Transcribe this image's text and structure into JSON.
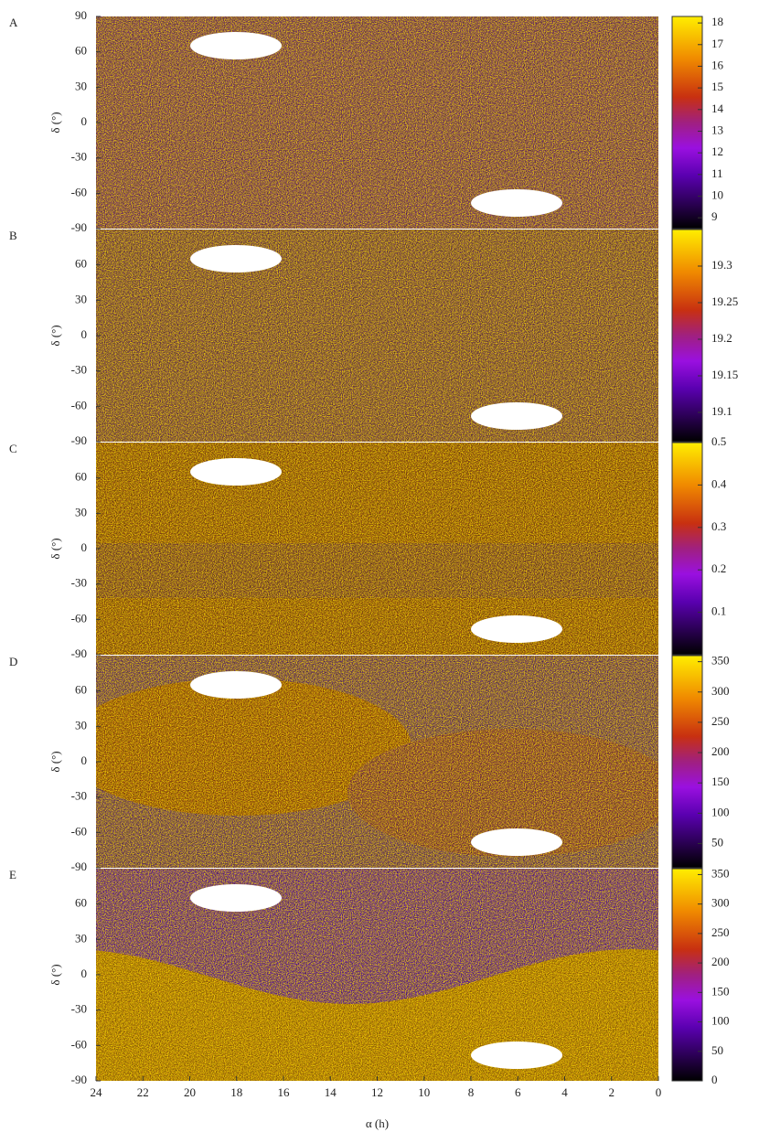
{
  "chart_data": [
    {
      "type": "heatmap",
      "panel": "A",
      "ylabel": "δ (°)",
      "ylim": [
        -90,
        90
      ],
      "yticks": [
        90,
        60,
        30,
        0,
        -30,
        -60,
        -90
      ],
      "clim": [
        8.5,
        18.3
      ],
      "cticks": [
        9,
        10,
        11,
        12,
        13,
        14,
        15,
        16,
        17,
        18
      ]
    },
    {
      "type": "heatmap",
      "panel": "B",
      "ylabel": "δ (°)",
      "ylim": [
        -90,
        90
      ],
      "yticks": [
        60,
        30,
        0,
        -30,
        -60,
        -90
      ],
      "clim": [
        19.06,
        19.35
      ],
      "cticks": [
        19.1,
        19.15,
        19.2,
        19.25,
        19.3
      ]
    },
    {
      "type": "heatmap",
      "panel": "C",
      "ylabel": "δ (°)",
      "ylim": [
        -90,
        90
      ],
      "yticks": [
        60,
        30,
        0,
        -30,
        -60,
        -90
      ],
      "clim": [
        0,
        0.5
      ],
      "cticks": [
        0.1,
        0.2,
        0.3,
        0.4,
        0.5
      ]
    },
    {
      "type": "heatmap",
      "panel": "D",
      "ylabel": "δ (°)",
      "ylim": [
        -90,
        90
      ],
      "yticks": [
        60,
        30,
        0,
        -30,
        -60,
        -90
      ],
      "clim": [
        10,
        360
      ],
      "cticks": [
        50,
        100,
        150,
        200,
        250,
        300,
        350
      ]
    },
    {
      "type": "heatmap",
      "panel": "E",
      "ylabel": "δ (°)",
      "ylim": [
        -90,
        90
      ],
      "yticks": [
        60,
        30,
        0,
        -30,
        -60,
        -90
      ],
      "clim": [
        0,
        360
      ],
      "cticks": [
        0,
        50,
        100,
        150,
        200,
        250,
        300,
        350
      ],
      "xlabel": "α (h)",
      "xlim": [
        24,
        0
      ],
      "xticks": [
        24,
        22,
        20,
        18,
        16,
        14,
        12,
        10,
        8,
        6,
        4,
        2,
        0
      ]
    }
  ]
}
